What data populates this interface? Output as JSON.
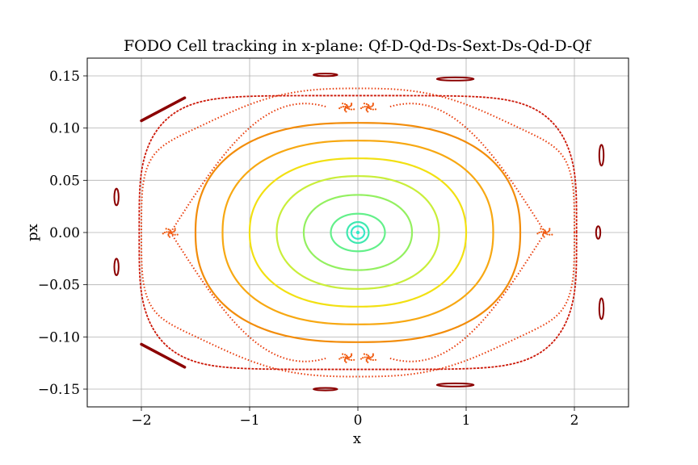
{
  "chart_data": {
    "type": "scatter",
    "title": "FODO Cell tracking in x-plane: Qf-D-Qd-Ds-Sext-Ds-Qd-D-Qf",
    "xlabel": "x",
    "ylabel": "px",
    "xlim": [
      -2.5,
      2.5
    ],
    "ylim": [
      -0.167,
      0.167
    ],
    "grid": true,
    "x_ticks": [
      -2,
      -1,
      0,
      1,
      2
    ],
    "x_tick_labels": [
      "−2",
      "−1",
      "0",
      "1",
      "2"
    ],
    "y_ticks": [
      -0.15,
      -0.1,
      -0.05,
      0.0,
      0.05,
      0.1,
      0.15
    ],
    "y_tick_labels": [
      "−0.15",
      "−0.10",
      "−0.05",
      "0.00",
      "0.05",
      "0.10",
      "0.15"
    ],
    "closed_orbits": [
      {
        "ax": 0.0,
        "ay": 0.0,
        "color": "#35e8c8"
      },
      {
        "ax": 0.06,
        "ay": 0.006,
        "color": "#35e8c8"
      },
      {
        "ax": 0.1,
        "ay": 0.01,
        "color": "#3fe8b0"
      },
      {
        "ax": 0.25,
        "ay": 0.018,
        "color": "#63f08a"
      },
      {
        "ax": 0.5,
        "ay": 0.036,
        "color": "#93f060"
      },
      {
        "ax": 0.75,
        "ay": 0.054,
        "color": "#c9ee3a"
      },
      {
        "ax": 1.0,
        "ay": 0.071,
        "color": "#f2e012"
      },
      {
        "ax": 1.25,
        "ay": 0.088,
        "color": "#f7a812"
      },
      {
        "ax": 1.5,
        "ay": 0.105,
        "color": "#f28c0a"
      }
    ],
    "separatrix": {
      "ax": 2.0,
      "ay": 0.138,
      "color": "#e83c0c"
    },
    "outer_orbit": {
      "ax": 2.02,
      "ay": 0.138,
      "color": "#cc1808"
    },
    "island_chain": {
      "color": "#8b0000",
      "islands": [
        {
          "x": -2.23,
          "y": 0.034,
          "wx": 0.02,
          "wy": 0.008
        },
        {
          "x": -2.23,
          "y": -0.033,
          "wx": 0.02,
          "wy": 0.008
        },
        {
          "x": 2.22,
          "y": 0.0,
          "wx": 0.02,
          "wy": 0.006
        },
        {
          "x": 2.25,
          "y": 0.074,
          "wx": 0.02,
          "wy": 0.01
        },
        {
          "x": 2.25,
          "y": -0.073,
          "wx": 0.02,
          "wy": 0.01
        },
        {
          "x": -0.3,
          "y": 0.151,
          "wx": 0.11,
          "wy": 0.0012
        },
        {
          "x": -0.3,
          "y": -0.15,
          "wx": 0.11,
          "wy": 0.0012
        },
        {
          "x": 0.9,
          "y": 0.147,
          "wx": 0.17,
          "wy": 0.0015
        },
        {
          "x": 0.9,
          "y": -0.146,
          "wx": 0.17,
          "wy": 0.0015
        }
      ],
      "arcs": [
        {
          "x1": -2.0,
          "y1": 0.107,
          "x2": -1.6,
          "y2": 0.129
        },
        {
          "x1": -2.0,
          "y1": -0.107,
          "x2": -1.6,
          "y2": -0.129
        }
      ]
    },
    "resonance_points": [
      {
        "x": -1.73,
        "y": 0.0
      },
      {
        "x": 1.73,
        "y": 0.0
      },
      {
        "x": -0.1,
        "y": 0.12
      },
      {
        "x": 0.1,
        "y": 0.12
      },
      {
        "x": -0.1,
        "y": -0.12
      },
      {
        "x": 0.1,
        "y": -0.12
      }
    ]
  }
}
